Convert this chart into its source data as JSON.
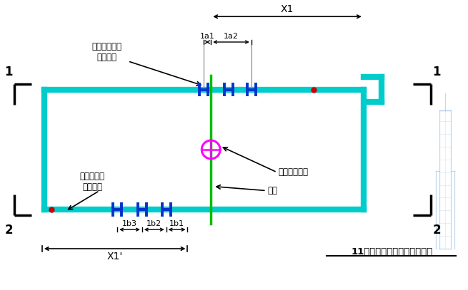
{
  "title": "11层预留套管定位平面示意图",
  "label_sleeve": "套管预留位置\n（余同）",
  "label_baseline": "土建基准线\n（余同）",
  "label_infrared": "红外线投线仪",
  "label_laser": "激光",
  "label_x1": "X1",
  "label_x1p": "X1'",
  "label_1a1": "1a1",
  "label_1a2": "1a2",
  "label_1b1": "1b1",
  "label_1b2": "1b2",
  "label_1b3": "1b3",
  "cyan_color": "#00CCCC",
  "blue_color": "#0033CC",
  "green_color": "#00BB00",
  "magenta_color": "#FF00FF",
  "red_color": "#CC0000",
  "black_color": "#000000",
  "bg_color": "#FFFFFF",
  "fig_width": 6.55,
  "fig_height": 4.07
}
